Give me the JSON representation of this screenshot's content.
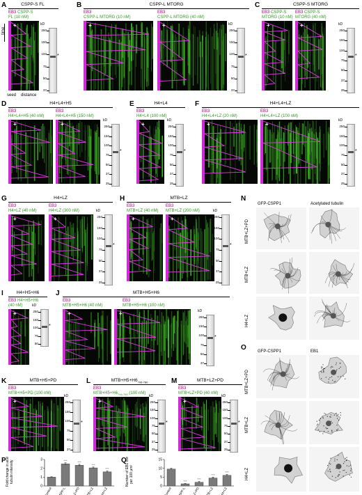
{
  "panels": {
    "A": {
      "letter": "A",
      "title": "CSPP-S FL",
      "cap1": "EB3",
      "cap2": "CSPP-S",
      "cap3": "FL (10 nM)",
      "axis_time": "time",
      "axis_seed": "seed",
      "axis_distance": "distance",
      "kd": "kD",
      "mw": [
        "250",
        "150",
        "100",
        "75",
        "50",
        "37"
      ]
    },
    "B": {
      "letter": "B",
      "title": "CSPP-L MTORG",
      "capL1": "EB3",
      "capL2": "CSPP-L MTORG (10 nM)",
      "capR1": "EB3",
      "capR2": "CSPP-L MTORG (40 nM)",
      "kd": "kD",
      "mw": [
        "250",
        "150",
        "100",
        "75",
        "50",
        "37"
      ]
    },
    "C": {
      "letter": "C",
      "title": "CSPP-S MTORG",
      "capL1": "EB3",
      "capL2": "CSPP-S",
      "capL3": "MTORG (10 nM)",
      "capR1": "EB3",
      "capR2": "CSPP-S",
      "capR3": "MTORG (40 nM)",
      "kd": "kD",
      "mw": [
        "250",
        "150",
        "100",
        "75",
        "50",
        "37",
        "25"
      ]
    },
    "D": {
      "letter": "D",
      "title": "H4+L4+H5",
      "capL1": "EB3",
      "capL2": "H4+L4+H5 (40 nM)",
      "capR1": "EB3",
      "capR2": "H4+L4+H5 (150 nM)",
      "kd": "kD",
      "mw": [
        "250",
        "150",
        "100",
        "75",
        "50",
        "37",
        "25"
      ]
    },
    "E": {
      "letter": "E",
      "title": "H4+L4",
      "capL1": "EB3",
      "capL2": "H4+L4 (100 nM)",
      "kd": "kD",
      "mw": [
        "250",
        "150",
        "100",
        "75",
        "50",
        "37",
        "25"
      ]
    },
    "F": {
      "letter": "F",
      "title": "H4+L4+LZ",
      "capL1": "EB3",
      "capL2": "H4+L4+LZ (20 nM)",
      "capR1": "EB3",
      "capR2": "H4+L4+LZ (100 nM)",
      "kd": "kD",
      "mw": [
        "250",
        "150",
        "100",
        "75",
        "50",
        "37",
        "25"
      ]
    },
    "G": {
      "letter": "G",
      "title": "H4+LZ",
      "capL1": "EB3",
      "capL2": "H4+LZ (40 nM)",
      "capR1": "EB3",
      "capR2": "H4+LZ (300 nM)",
      "kd": "kD",
      "mw": [
        "250",
        "150",
        "100",
        "75",
        "50",
        "37",
        "25"
      ]
    },
    "H": {
      "letter": "H",
      "title": "MTB+LZ",
      "capL1": "EB3",
      "capL2": "MTB+LZ (40 nM)",
      "capR1": "EB3",
      "capR2": "MTB+LZ (200 nM)",
      "kd": "kD",
      "mw": [
        "250",
        "150",
        "100",
        "75",
        "50",
        "37",
        "25"
      ]
    },
    "I": {
      "letter": "I",
      "title": "H4+H5+H6",
      "capL1": "EB3",
      "capL2": "H4+H5+H6",
      "capL3": "(40 nM)",
      "kd": "kD",
      "mw": [
        "250",
        "150",
        "100",
        "75",
        "50"
      ]
    },
    "J": {
      "letter": "J",
      "title": "MTB+H5+H6",
      "capL1": "EB3",
      "capL2": "MTB+H5+H6 (40 nM)",
      "capR1": "EB3",
      "capR2": "MTB+H5+H6 (100 nM)",
      "kd": "kD",
      "mw": [
        "250",
        "150",
        "100",
        "75",
        "50",
        "37"
      ]
    },
    "K": {
      "letter": "K",
      "title": "MTB+H5+PD",
      "capL1": "EB3",
      "capL2": "MTB+H5+PD (100 nM)",
      "kd": "kD",
      "mw": [
        "250",
        "150",
        "100",
        "75",
        "50",
        "37"
      ]
    },
    "L": {
      "letter": "L",
      "title": "MTB+H5+H6",
      "title_sub": "706-780",
      "capL1": "EB3",
      "capL2": "MTB+H5+H6",
      "capL2sub": "706-780",
      "capL3": " (100 nM)",
      "kd": "kD",
      "mw": [
        "250",
        "150",
        "100",
        "75",
        "50",
        "37",
        "25"
      ]
    },
    "M": {
      "letter": "M",
      "title": "MTB+LZ+PD",
      "capL1": "EB3",
      "capL2": "MTB+LZ+PD (40 nM)",
      "kd": "kD",
      "mw": [
        "250",
        "150",
        "100",
        "75",
        "50",
        "37",
        "25"
      ]
    },
    "N": {
      "letter": "N",
      "col1": "GFP-CSPP1",
      "col2": "Acetylated tubulin",
      "rows": [
        "MTB+LZ+PD",
        "MTB+LZ",
        "H4+LZ"
      ]
    },
    "O": {
      "letter": "O",
      "col1": "GFP-CSPP1",
      "col2": "EB1",
      "rows": [
        "MTB+LZ+PD",
        "MTB+LZ",
        "H4+LZ"
      ]
    },
    "P": {
      "letter": "P"
    },
    "Q": {
      "letter": "Q"
    }
  },
  "chart_data": [
    {
      "type": "bar",
      "panel": "P",
      "categories": [
        "Control",
        "CSPP-L",
        "MTB+LZ+PD",
        "MTB+LZ",
        "H4+LZ"
      ],
      "values": [
        1.0,
        2.5,
        2.35,
        2.05,
        1.6
      ],
      "errors": [
        0.04,
        0.12,
        0.1,
        0.09,
        0.09
      ],
      "significance": [
        "",
        "***",
        "***",
        "***",
        "***"
      ],
      "ylabel_line1": "Fold change in acetylated",
      "ylabel_line2": "tubulin intensity",
      "ylim": [
        0,
        3
      ],
      "yticks": [
        "0",
        "1",
        "2",
        "3"
      ],
      "color": "#7a7a7a"
    },
    {
      "type": "bar",
      "panel": "Q",
      "categories": [
        "Control",
        "CSPP-L",
        "MTB+LZ+PD",
        "MTB+LZ",
        "H4+LZ"
      ],
      "values": [
        9.6,
        1.2,
        2.1,
        4.5,
        6.0
      ],
      "errors": [
        0.4,
        0.2,
        0.4,
        0.5,
        0.5
      ],
      "significance": [
        "",
        "***",
        "***",
        "***",
        "***"
      ],
      "ylabel_line1": "Number of EB1 comets",
      "ylabel_line2": "per 100 µm²",
      "ylim": [
        0,
        15
      ],
      "yticks": [
        "0",
        "5",
        "10",
        "15"
      ],
      "color": "#7a7a7a"
    }
  ]
}
